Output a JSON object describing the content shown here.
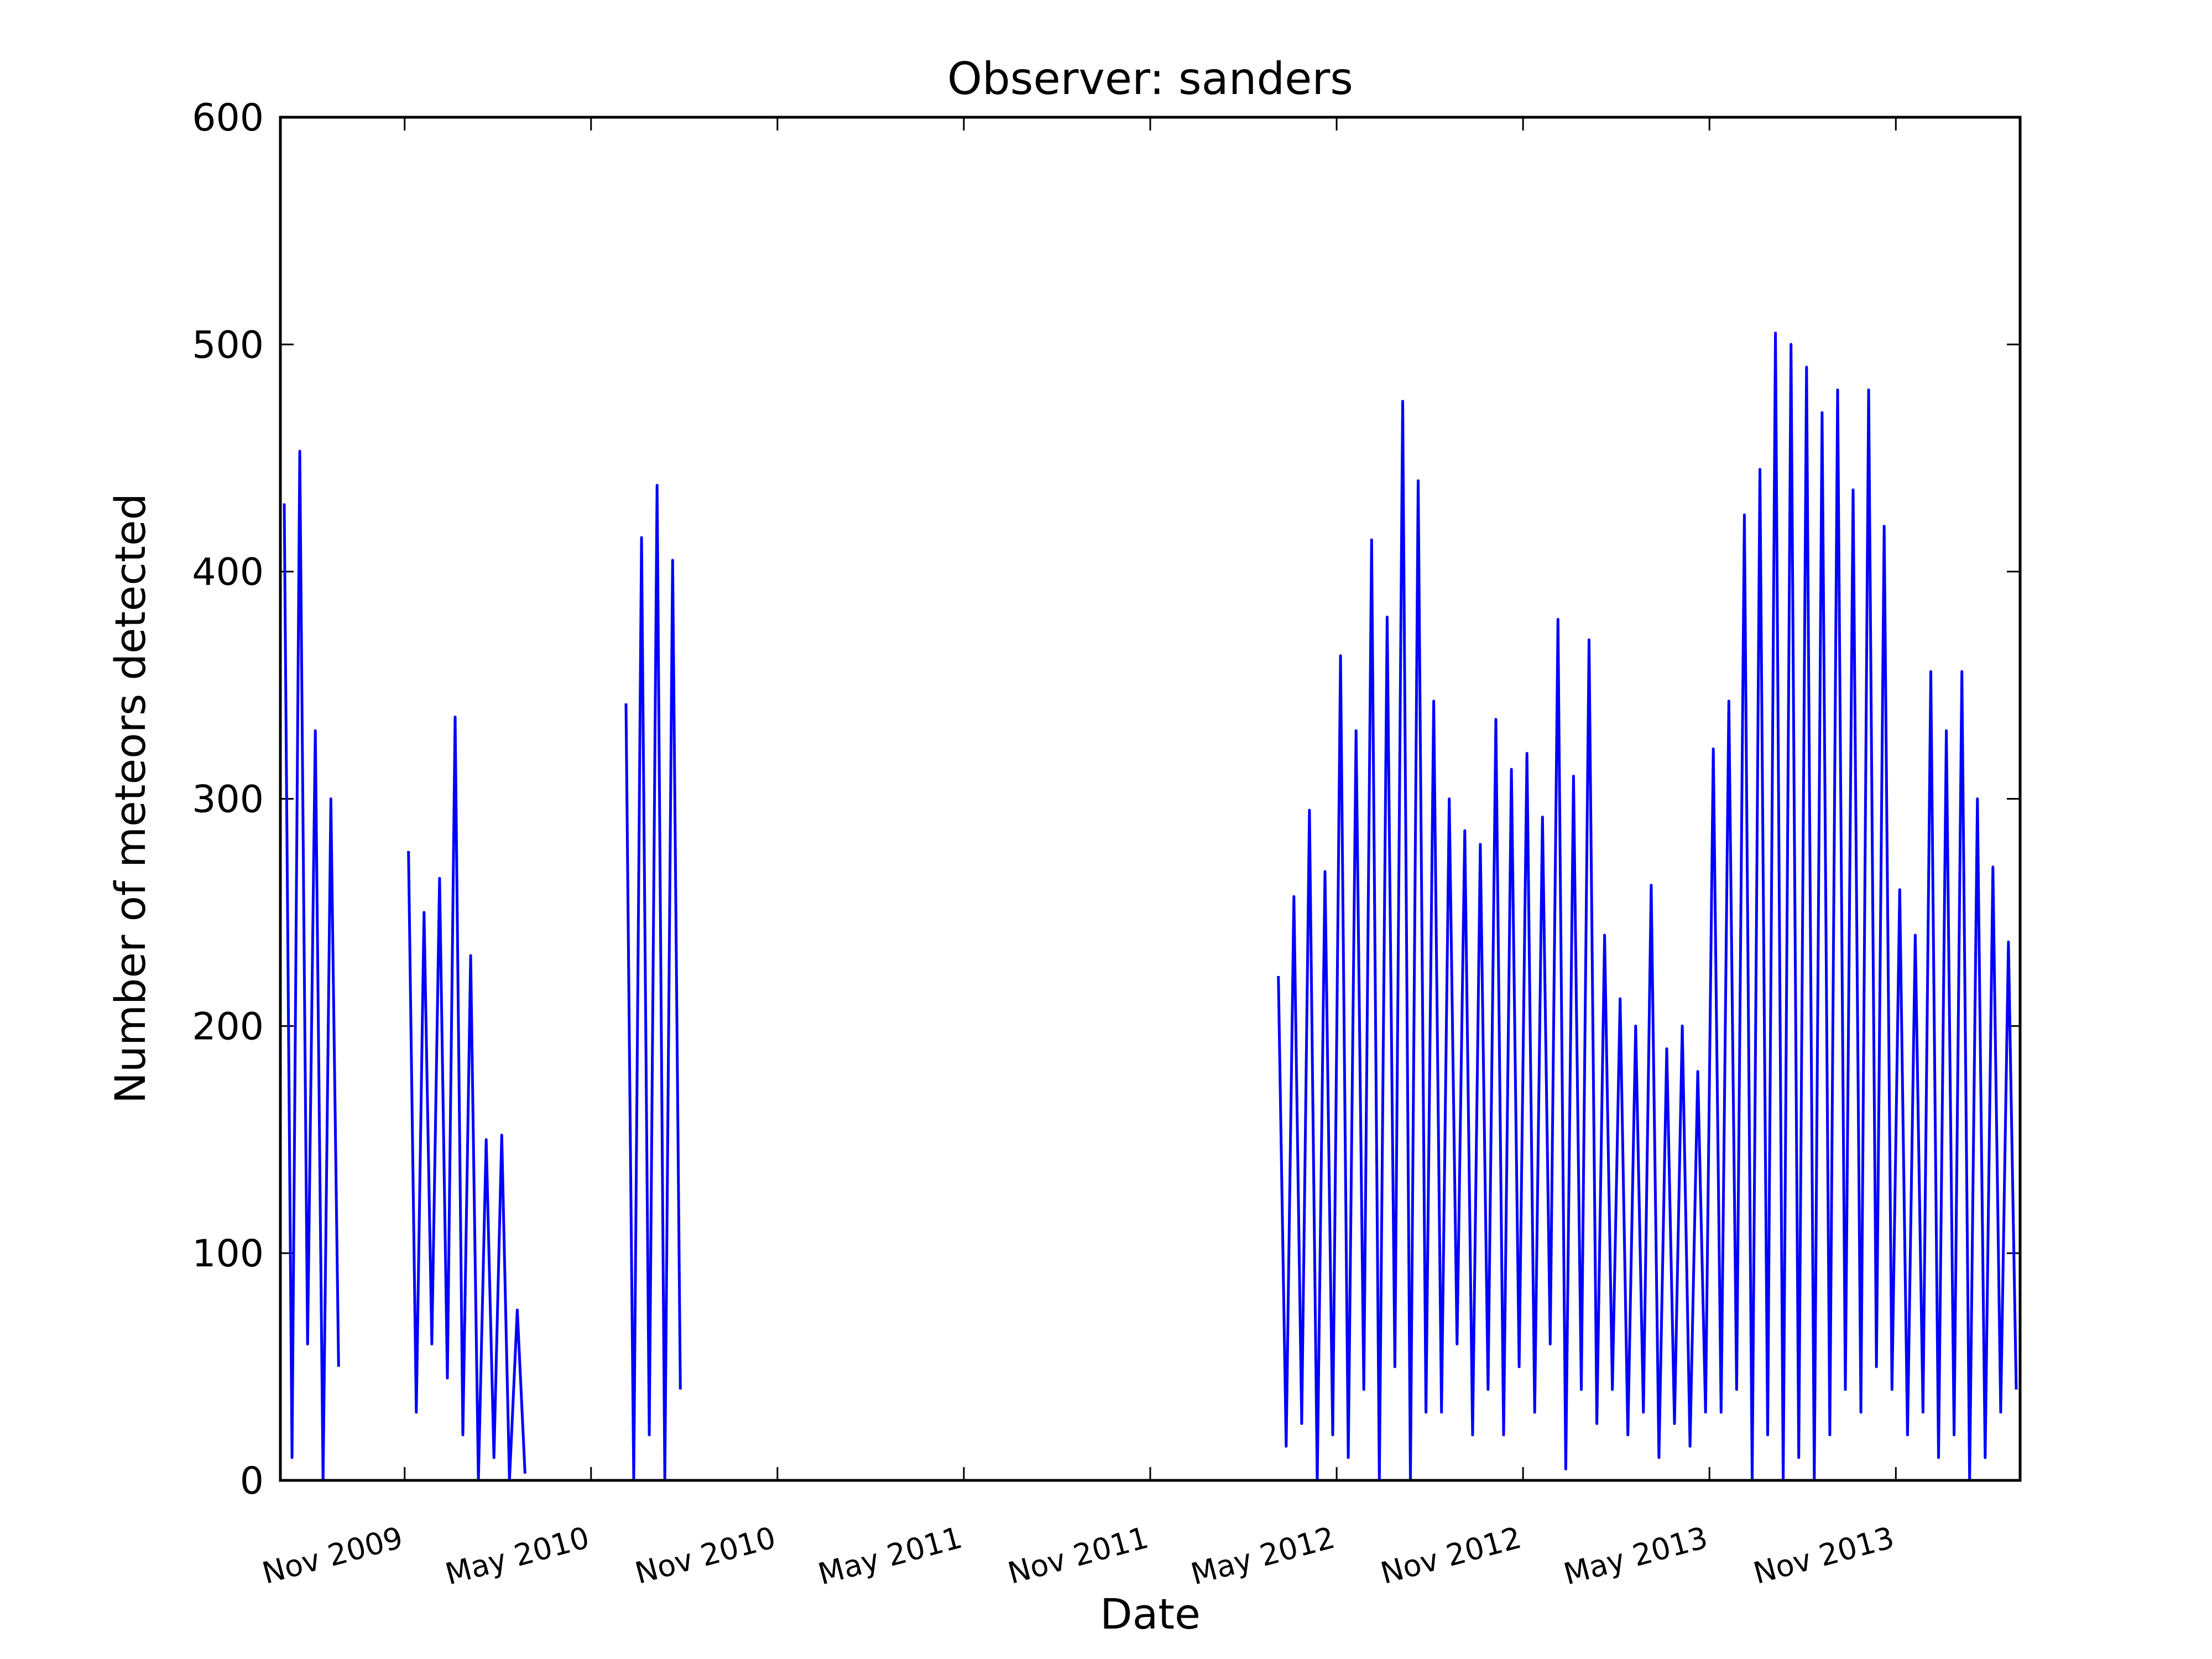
{
  "chart_data": {
    "type": "line",
    "title": "Observer: sanders",
    "xlabel": "Date",
    "ylabel": "Number of meteors detected",
    "color": "#0000ff",
    "xlim": [
      "2009-07",
      "2014-03"
    ],
    "xticks": [
      {
        "value": "2009-11",
        "label": "Nov 2009"
      },
      {
        "value": "2010-05",
        "label": "May 2010"
      },
      {
        "value": "2010-11",
        "label": "Nov 2010"
      },
      {
        "value": "2011-05",
        "label": "May 2011"
      },
      {
        "value": "2011-11",
        "label": "Nov 2011"
      },
      {
        "value": "2012-05",
        "label": "May 2012"
      },
      {
        "value": "2012-11",
        "label": "Nov 2012"
      },
      {
        "value": "2013-05",
        "label": "May 2013"
      },
      {
        "value": "2013-11",
        "label": "Nov 2013"
      }
    ],
    "ylim": [
      0,
      600
    ],
    "yticks": [
      0,
      100,
      200,
      300,
      400,
      500,
      600
    ],
    "x": [
      "2009-07",
      "2009-07",
      "2009-07",
      "2009-07",
      "2009-08",
      "2009-08",
      "2009-08",
      "2009-08",
      "2009-09",
      "2009-11",
      "2009-11",
      "2009-11",
      "2009-11",
      "2009-12",
      "2009-12",
      "2009-12",
      "2009-12",
      "2010-01",
      "2010-01",
      "2010-01",
      "2010-01",
      "2010-02",
      "2010-02",
      "2010-02",
      "2010-02",
      "2010-04",
      "2010-06",
      "2010-06",
      "2010-06",
      "2010-06",
      "2010-07",
      "2010-07",
      "2010-07",
      "2010-07",
      "2011-06",
      "2012-03",
      "2012-03",
      "2012-03",
      "2012-03",
      "2012-04",
      "2012-04",
      "2012-04",
      "2012-04",
      "2012-05",
      "2012-05",
      "2012-05",
      "2012-05",
      "2012-06",
      "2012-06",
      "2012-06",
      "2012-06",
      "2012-07",
      "2012-07",
      "2012-07",
      "2012-07",
      "2012-08",
      "2012-08",
      "2012-08",
      "2012-08",
      "2012-09",
      "2012-09",
      "2012-09",
      "2012-09",
      "2012-10",
      "2012-10",
      "2012-10",
      "2012-10",
      "2012-11",
      "2012-11",
      "2012-11",
      "2012-11",
      "2012-12",
      "2012-12",
      "2012-12",
      "2012-12",
      "2013-01",
      "2013-01",
      "2013-01",
      "2013-01",
      "2013-02",
      "2013-02",
      "2013-02",
      "2013-02",
      "2013-03",
      "2013-03",
      "2013-03",
      "2013-03",
      "2013-04",
      "2013-04",
      "2013-04",
      "2013-04",
      "2013-05",
      "2013-05",
      "2013-05",
      "2013-05",
      "2013-06",
      "2013-06",
      "2013-06",
      "2013-06",
      "2013-07",
      "2013-07",
      "2013-07",
      "2013-07",
      "2013-08",
      "2013-08",
      "2013-08",
      "2013-08",
      "2013-09",
      "2013-09",
      "2013-09",
      "2013-09",
      "2013-10",
      "2013-10",
      "2013-10",
      "2013-10",
      "2013-11",
      "2013-11",
      "2013-11",
      "2013-11",
      "2013-12",
      "2013-12",
      "2013-12",
      "2013-12",
      "2014-01",
      "2014-01",
      "2014-01",
      "2014-01",
      "2014-02",
      "2014-02",
      "2014-02",
      "2014-02"
    ],
    "values": [
      430,
      10,
      453,
      60,
      330,
      0,
      300,
      50,
      null,
      277,
      30,
      250,
      60,
      265,
      45,
      336,
      20,
      231,
      0,
      150,
      10,
      152,
      0,
      75,
      3,
      null,
      342,
      0,
      415,
      20,
      438,
      0,
      405,
      40,
      null,
      222,
      15,
      257,
      25,
      295,
      0,
      268,
      20,
      363,
      10,
      330,
      40,
      414,
      0,
      380,
      50,
      475,
      0,
      440,
      30,
      343,
      30,
      300,
      60,
      286,
      20,
      280,
      40,
      335,
      20,
      313,
      50,
      320,
      30,
      292,
      60,
      379,
      5,
      310,
      40,
      370,
      25,
      240,
      40,
      212,
      20,
      200,
      30,
      262,
      10,
      190,
      25,
      200,
      15,
      180,
      30,
      322,
      30,
      343,
      40,
      425,
      0,
      445,
      20,
      505,
      0,
      500,
      10,
      490,
      0,
      470,
      20,
      480,
      40,
      436,
      30,
      480,
      50,
      420,
      40,
      260,
      20,
      240,
      30,
      356,
      10,
      330,
      20,
      356,
      0,
      300,
      10,
      270,
      30,
      237,
      40
    ]
  }
}
